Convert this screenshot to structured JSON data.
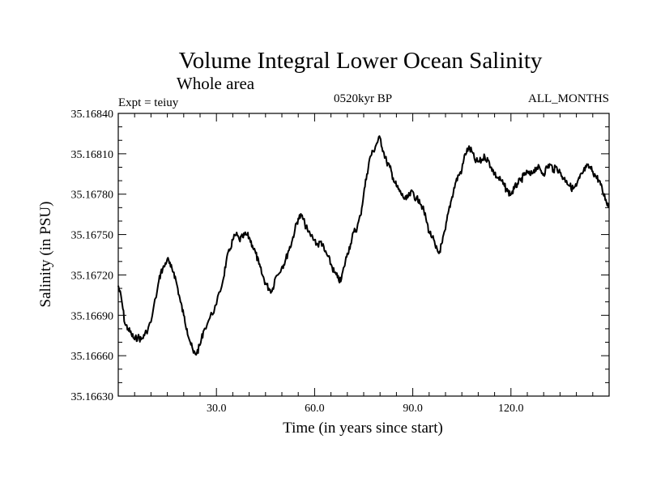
{
  "chart_data": {
    "type": "line",
    "title": "Volume Integral Lower Ocean Salinity",
    "subtitle": "Whole area",
    "experiment": "Expt = teiuy",
    "period": "0520kyr BP",
    "months": "ALL_MONTHS",
    "xlabel": "Time (in years since start)",
    "ylabel": "Salinity (in PSU)",
    "xlim": [
      0,
      150
    ],
    "ylim": [
      35.1663,
      35.1684
    ],
    "xticks": [
      30,
      60,
      90,
      120
    ],
    "xtick_labels": [
      "30.0",
      "60.0",
      "90.0",
      "120.0"
    ],
    "yticks": [
      35.1663,
      35.1666,
      35.1669,
      35.1672,
      35.1675,
      35.1678,
      35.1681,
      35.1684
    ],
    "ytick_labels": [
      "35.16630",
      "35.16660",
      "35.16690",
      "35.16720",
      "35.16750",
      "35.16780",
      "35.16810",
      "35.16840"
    ],
    "grid": false,
    "series": [
      {
        "name": "salinity",
        "color": "#000000",
        "x": [
          0,
          1,
          2,
          3,
          4,
          5,
          6,
          7,
          8,
          10,
          12,
          13,
          14,
          15,
          16,
          17,
          18,
          19,
          20,
          21,
          22,
          23,
          24,
          25,
          26,
          28,
          30,
          32,
          33,
          34,
          35,
          36,
          37,
          38,
          39,
          40,
          41,
          42,
          43,
          44,
          45,
          46,
          47,
          48,
          50,
          51,
          52,
          53,
          54,
          55,
          56,
          57,
          58,
          60,
          61,
          62,
          63,
          64,
          65,
          66,
          67,
          68,
          69,
          70,
          71,
          72,
          73,
          74,
          75,
          76,
          77,
          78,
          79,
          80,
          81,
          82,
          83,
          84,
          85,
          86,
          87,
          88,
          89,
          90,
          91,
          92,
          93,
          94,
          95,
          96,
          97,
          98,
          99,
          100,
          101,
          102,
          103,
          104,
          105,
          106,
          107,
          108,
          109,
          110,
          111,
          112,
          113,
          114,
          115,
          116,
          117,
          118,
          119,
          120,
          121,
          122,
          123,
          124,
          125,
          126,
          127,
          128,
          129,
          130,
          131,
          132,
          133,
          134,
          135,
          136,
          137,
          138,
          139,
          140,
          141,
          142,
          143,
          144,
          145,
          146,
          147,
          148,
          149,
          150
        ],
        "y": [
          35.16712,
          35.16702,
          35.16684,
          35.1668,
          35.16676,
          35.16672,
          35.16674,
          35.16672,
          35.16675,
          35.16685,
          35.1671,
          35.16722,
          35.16726,
          35.16732,
          35.16726,
          35.16722,
          35.16712,
          35.167,
          35.1669,
          35.1668,
          35.1667,
          35.16662,
          35.16662,
          35.16668,
          35.16678,
          35.16688,
          35.16698,
          35.16716,
          35.1673,
          35.16738,
          35.16746,
          35.1675,
          35.16746,
          35.16748,
          35.1675,
          35.16748,
          35.16742,
          35.16736,
          35.16728,
          35.1672,
          35.16714,
          35.1671,
          35.16708,
          35.16718,
          35.16726,
          35.1673,
          35.16738,
          35.16744,
          35.16754,
          35.16762,
          35.16764,
          35.16758,
          35.16752,
          35.16746,
          35.16742,
          35.16745,
          35.16738,
          35.16734,
          35.16728,
          35.16722,
          35.16718,
          35.16715,
          35.16726,
          35.16736,
          35.16743,
          35.16752,
          35.16755,
          35.16764,
          35.1678,
          35.16795,
          35.16808,
          35.16812,
          35.16818,
          35.16822,
          35.16812,
          35.16804,
          35.168,
          35.16792,
          35.16786,
          35.16782,
          35.16778,
          35.16776,
          35.16779,
          35.16782,
          35.16776,
          35.16776,
          35.1677,
          35.16762,
          35.16752,
          35.16748,
          35.1674,
          35.16736,
          35.16744,
          35.16754,
          35.16768,
          35.16778,
          35.16788,
          35.16794,
          35.16798,
          35.1681,
          35.16814,
          35.16812,
          35.16805,
          35.16804,
          35.16805,
          35.16808,
          35.16805,
          35.168,
          35.16795,
          35.16792,
          35.1679,
          35.16786,
          35.16782,
          35.1678,
          35.16784,
          35.16788,
          35.1679,
          35.16794,
          35.16796,
          35.16794,
          35.16798,
          35.168,
          35.16798,
          35.16795,
          35.168,
          35.16802,
          35.16798,
          35.168,
          35.16796,
          35.16792,
          35.1679,
          35.16786,
          35.16784,
          35.16786,
          35.16792,
          35.16796,
          35.168,
          35.168,
          35.16797,
          35.16793,
          35.1679,
          35.16782,
          35.16776,
          35.1677
        ]
      }
    ]
  }
}
